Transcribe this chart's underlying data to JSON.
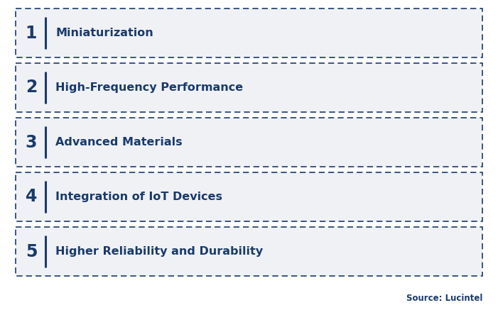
{
  "items": [
    {
      "number": "1",
      "text": "Miniaturization"
    },
    {
      "number": "2",
      "text": "High-Frequency Performance"
    },
    {
      "number": "3",
      "text": "Advanced Materials"
    },
    {
      "number": "4",
      "text": "Integration of IoT Devices"
    },
    {
      "number": "5",
      "text": "Higher Reliability and Durability"
    }
  ],
  "background_color": "#ffffff",
  "box_fill_color": "#eff1f5",
  "box_border_color": "#1a3a6b",
  "number_color": "#1a3a6b",
  "text_color": "#1a3a6b",
  "divider_color": "#1a3a6b",
  "source_text": "Source: Lucintel",
  "source_color": "#1a3a6b",
  "number_fontsize": 17,
  "text_fontsize": 11.5
}
